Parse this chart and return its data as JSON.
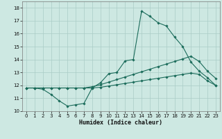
{
  "xlabel": "Humidex (Indice chaleur)",
  "xlim": [
    -0.5,
    23.5
  ],
  "ylim": [
    10,
    18.5
  ],
  "yticks": [
    10,
    11,
    12,
    13,
    14,
    15,
    16,
    17,
    18
  ],
  "xticks": [
    0,
    1,
    2,
    3,
    4,
    5,
    6,
    7,
    8,
    9,
    10,
    11,
    12,
    13,
    14,
    15,
    16,
    17,
    18,
    19,
    20,
    21,
    22,
    23
  ],
  "background_color": "#cde8e2",
  "grid_color": "#aaccc6",
  "line_color": "#1a6b5a",
  "line1_x": [
    0,
    1,
    2,
    3,
    4,
    5,
    6,
    7,
    8,
    9,
    10,
    11,
    12,
    13,
    14,
    15,
    16,
    17,
    18,
    19,
    20,
    21,
    22,
    23
  ],
  "line1_y": [
    11.8,
    11.8,
    11.7,
    11.3,
    10.8,
    10.4,
    10.5,
    10.6,
    11.8,
    12.2,
    12.9,
    13.0,
    13.9,
    14.0,
    17.75,
    17.35,
    16.85,
    16.6,
    15.75,
    15.0,
    13.8,
    13.1,
    12.6,
    12.0
  ],
  "line2_x": [
    0,
    1,
    2,
    3,
    4,
    5,
    6,
    7,
    8,
    9,
    10,
    11,
    12,
    13,
    14,
    15,
    16,
    17,
    18,
    19,
    20,
    21,
    22,
    23
  ],
  "line2_y": [
    11.8,
    11.8,
    11.8,
    11.8,
    11.8,
    11.8,
    11.8,
    11.8,
    11.9,
    12.05,
    12.25,
    12.45,
    12.65,
    12.85,
    13.05,
    13.25,
    13.45,
    13.65,
    13.85,
    14.05,
    14.25,
    13.85,
    13.1,
    12.55
  ],
  "line3_x": [
    0,
    1,
    2,
    3,
    4,
    5,
    6,
    7,
    8,
    9,
    10,
    11,
    12,
    13,
    14,
    15,
    16,
    17,
    18,
    19,
    20,
    21,
    22,
    23
  ],
  "line3_y": [
    11.8,
    11.8,
    11.8,
    11.8,
    11.8,
    11.8,
    11.8,
    11.8,
    11.8,
    11.85,
    11.95,
    12.05,
    12.15,
    12.25,
    12.35,
    12.45,
    12.55,
    12.65,
    12.75,
    12.85,
    12.95,
    12.85,
    12.35,
    12.0
  ]
}
